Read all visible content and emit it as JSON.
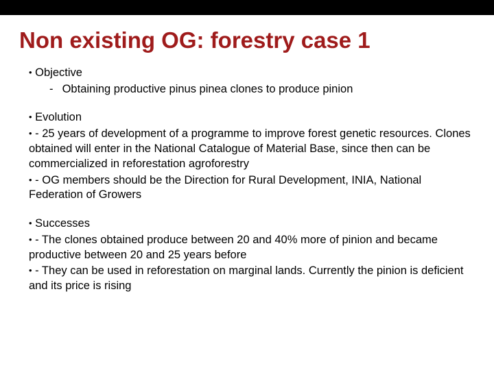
{
  "colors": {
    "title": "#9f1b1b",
    "text": "#000000",
    "topbar": "#000000",
    "background": "#ffffff"
  },
  "fonts": {
    "title_size": 33,
    "body_size": 16.5,
    "family": "Arial"
  },
  "title": "Non existing OG: forestry case 1",
  "objective": {
    "heading": "Objective",
    "item": "Obtaining productive pinus pinea clones to produce pinion"
  },
  "evolution": {
    "heading": "Evolution",
    "items": [
      "   - 25 years of development of a programme to improve forest genetic resources.  Clones obtained will enter in the National Catalogue of Material Base, since then can be commercialized in reforestation agroforestry",
      "   - OG members should be the Direction for Rural Development, INIA, National   Federation of Growers"
    ]
  },
  "successes": {
    "heading": "Successes",
    "items": [
      "   - The clones obtained produce between 20 and 40% more of pinion and became productive between 20 and 25 years before",
      "   - They can be used in reforestation on marginal lands. Currently the pinion is deficient and its price is rising"
    ]
  }
}
